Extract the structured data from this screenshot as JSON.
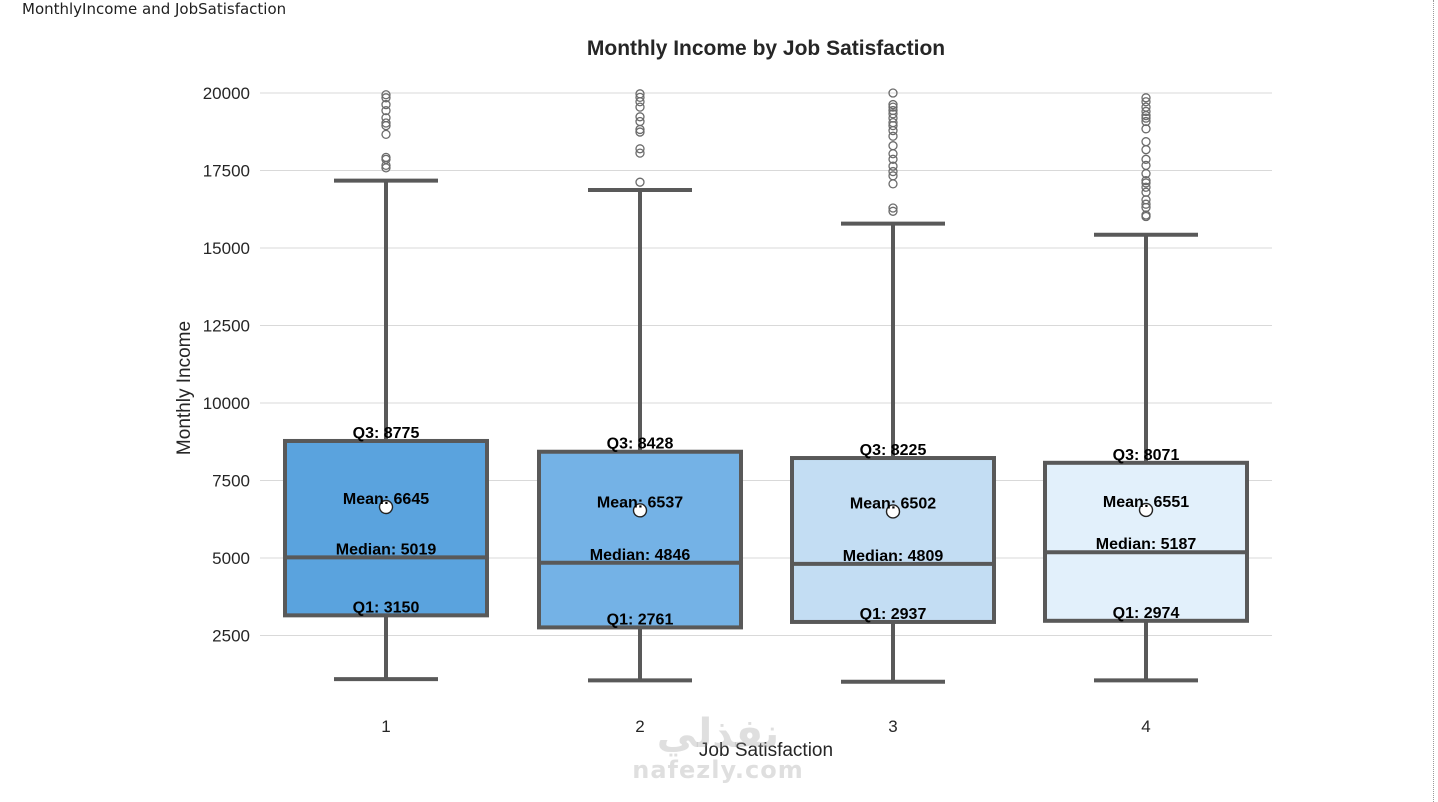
{
  "panel": {
    "title": "MonthlyIncome and JobSatisfaction"
  },
  "watermark": {
    "arabic": "نفذلي",
    "latin": "nafezly.com"
  },
  "chart_data": {
    "type": "box",
    "title": "Monthly Income by Job Satisfaction",
    "xlabel": "Job Satisfaction",
    "ylabel": "Monthly Income",
    "ylim": [
      0,
      20500
    ],
    "yticks": [
      2500,
      5000,
      7500,
      10000,
      12500,
      15000,
      17500,
      20000
    ],
    "grid": true,
    "colors": {
      "whisker": "#595959",
      "grid": "#d9d9d9",
      "mean_marker": "#ffffff"
    },
    "categories": [
      "1",
      "2",
      "3",
      "4"
    ],
    "boxes": [
      {
        "category": "1",
        "fill": "#5aa3de",
        "whisker_low": 1091,
        "q1": 3150,
        "median": 5019,
        "q3": 8775,
        "whisker_high": 17174,
        "mean": 6645,
        "labels": {
          "q3": "Q3: 8775",
          "mean": "Mean: 6645",
          "median": "Median: 5019",
          "q1": "Q1: 3150"
        },
        "outliers": [
          17584,
          17665,
          17861,
          17924,
          18665,
          18947,
          19033,
          19202,
          19431,
          19627,
          19845,
          19943
        ]
      },
      {
        "category": "2",
        "fill": "#74b2e6",
        "whisker_low": 1051,
        "q1": 2761,
        "median": 4846,
        "q3": 8428,
        "whisker_high": 16872,
        "mean": 6537,
        "labels": {
          "q3": "Q3: 8428",
          "mean": "Mean: 6537",
          "median": "Median: 4846",
          "q1": "Q1: 2761"
        },
        "outliers": [
          17123,
          18061,
          18200,
          18740,
          18824,
          19081,
          19232,
          19545,
          19717,
          19859,
          19973
        ]
      },
      {
        "category": "3",
        "fill": "#c3ddf3",
        "whisker_low": 1009,
        "q1": 2937,
        "median": 4809,
        "q3": 8225,
        "whisker_high": 15787,
        "mean": 6502,
        "labels": {
          "q3": "Q3: 8225",
          "mean": "Mean: 6502",
          "median": "Median: 4809",
          "q1": "Q1: 2937"
        },
        "outliers": [
          16184,
          16291,
          17068,
          17328,
          17465,
          17639,
          17861,
          18041,
          18300,
          18606,
          18789,
          18947,
          19045,
          19190,
          19328,
          19436,
          19545,
          19627,
          19999
        ]
      },
      {
        "category": "4",
        "fill": "#e2f0fb",
        "whisker_low": 1052,
        "q1": 2974,
        "median": 5187,
        "q3": 8071,
        "whisker_high": 15427,
        "mean": 6551,
        "labels": {
          "q3": "Q3: 8071",
          "mean": "Mean: 6551",
          "median": "Median: 5187",
          "q1": "Q1: 2974"
        },
        "outliers": [
          16015,
          16064,
          16307,
          16413,
          16555,
          16799,
          16959,
          17099,
          17174,
          17399,
          17665,
          17861,
          18172,
          18430,
          18844,
          19081,
          19189,
          19272,
          19406,
          19545,
          19717,
          19845
        ]
      }
    ]
  }
}
